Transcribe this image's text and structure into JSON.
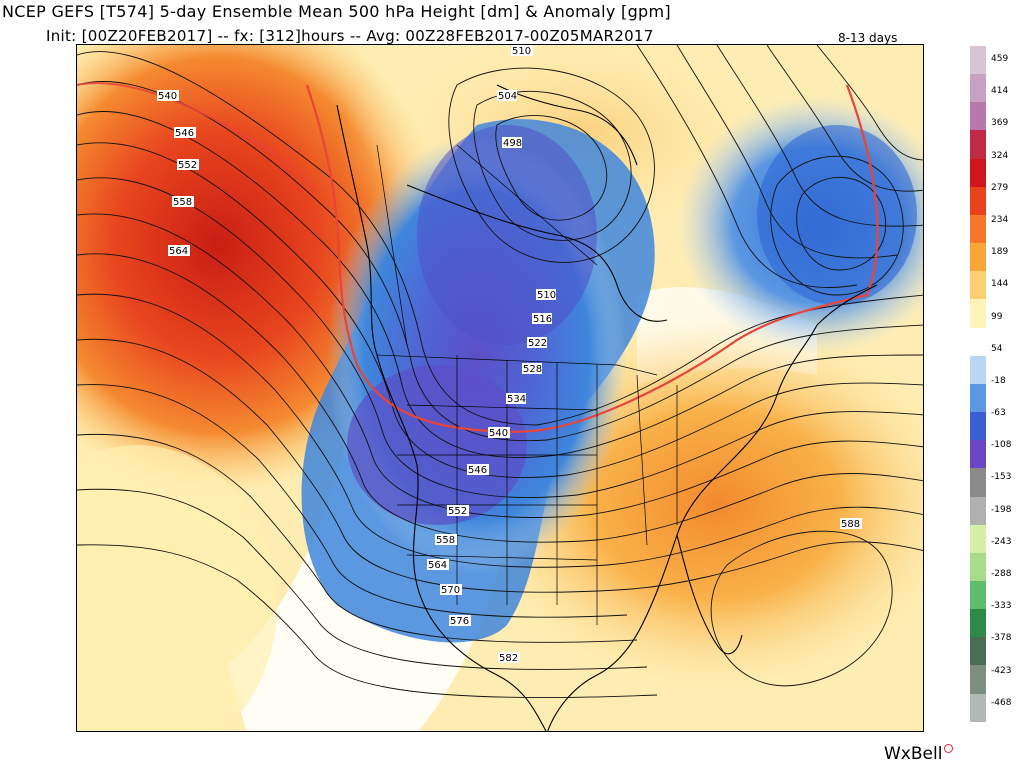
{
  "header": {
    "title": "NCEP GEFS [T574] 5-day Ensemble Mean 500 hPa Height [dm] & Anomaly [gpm]",
    "subtitle": "Init: [00Z20FEB2017] -- fx: [312]hours -- Avg: 00Z28FEB2017-00Z05MAR2017",
    "range": "8-13 days"
  },
  "map": {
    "region": "North America and adjacent Pacific / Atlantic",
    "contour_labels": [
      "510",
      "504",
      "498",
      "540",
      "546",
      "552",
      "558",
      "564",
      "510",
      "516",
      "522",
      "528",
      "534",
      "540",
      "546",
      "552",
      "558",
      "564",
      "570",
      "576",
      "582",
      "588"
    ],
    "colors": {
      "red_contour": "#e8443a",
      "ridge_deep": "#c81e14",
      "ridge": "#f07a28",
      "ridge_light": "#fbc86a",
      "neutral": "#fff6c8",
      "trough_light": "#a7cbee",
      "trough": "#3f7fd8",
      "trough_deep": "#5b4fc6"
    }
  },
  "colorbar": {
    "labels": [
      "459",
      "414",
      "369",
      "324",
      "279",
      "234",
      "189",
      "144",
      "99",
      "54",
      "-18",
      "-63",
      "-108",
      "-153",
      "-198",
      "-243",
      "-288",
      "-333",
      "-378",
      "-423",
      "-468"
    ],
    "colors": [
      "#d9c4d6",
      "#c8a0c4",
      "#b57aab",
      "#c02a45",
      "#d2141b",
      "#e9421c",
      "#f5782a",
      "#faa53a",
      "#fcd071",
      "#fef3b8",
      "#ffffff",
      "#b9d6f4",
      "#5b97e2",
      "#3a5fd1",
      "#6b46c4",
      "#8a8a8a",
      "#b0b0b0",
      "#d6efa8",
      "#a9dc8a",
      "#5ebc6a",
      "#2f8a4a",
      "#4a6e52",
      "#7c8e80",
      "#b4b8b4"
    ]
  },
  "brand": {
    "name": "WxBell"
  }
}
